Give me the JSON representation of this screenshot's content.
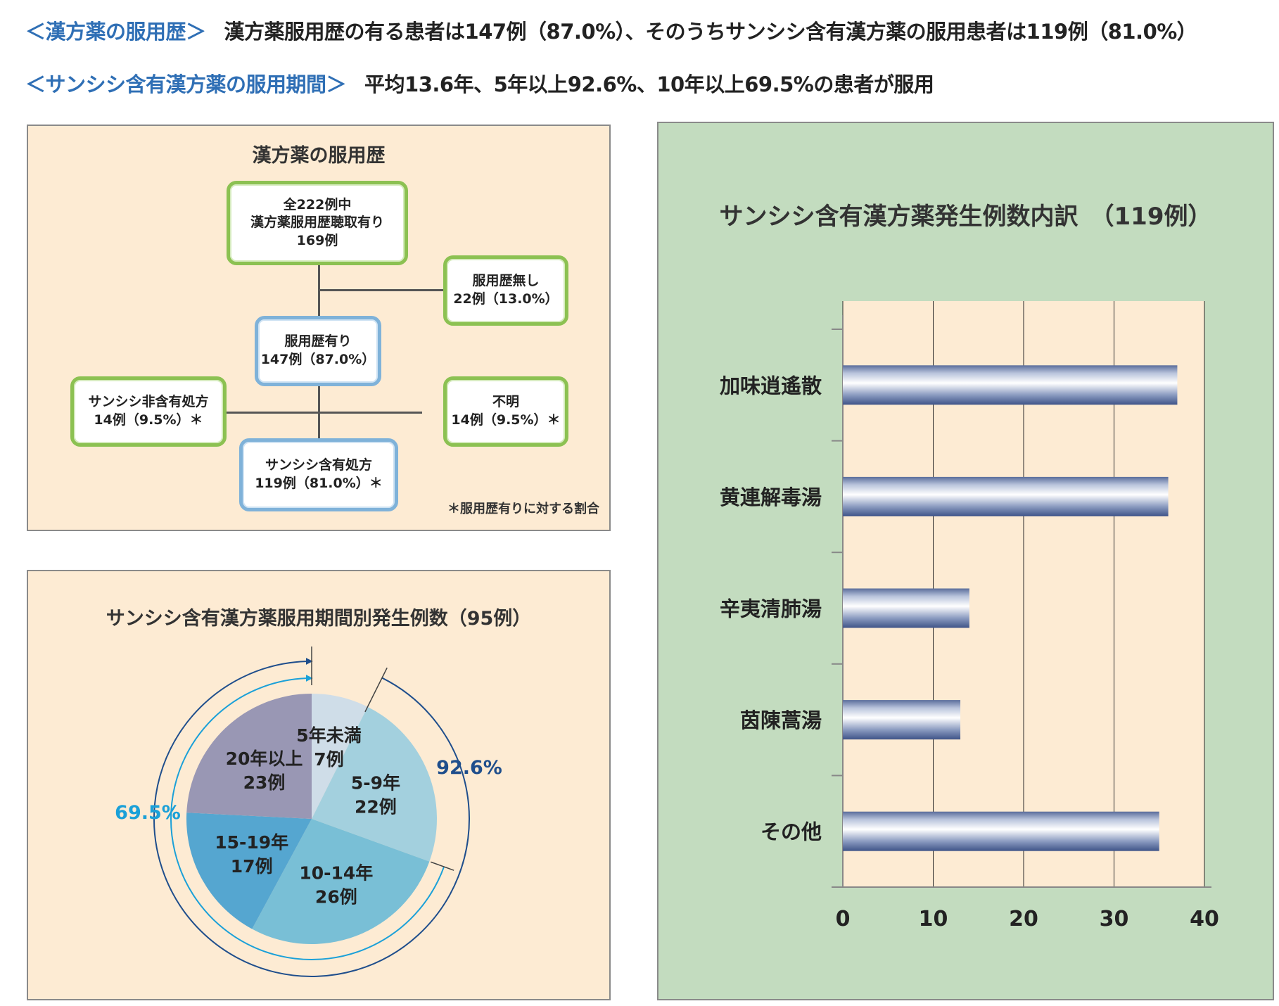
{
  "header": {
    "line1_label": "＜漢方薬の服用歴＞",
    "line1_text": "漢方薬服用歴の有る患者は147例（87.0%）、そのうちサンシシ含有漢方薬の服用患者は119例（81.0%）",
    "line2_label": "＜サンシシ含有漢方薬の服用期間＞",
    "line2_text": "平均13.6年、5年以上92.6%、10年以上69.5%の患者が服用"
  },
  "flow": {
    "title": "漢方薬の服用歴",
    "total": {
      "line1": "全222例中",
      "line2": "漢方薬服用歴聴取有り",
      "line3": "169例"
    },
    "none": {
      "line1": "服用歴無し",
      "line2": "22例（13.0%）"
    },
    "yes": {
      "line1": "服用歴有り",
      "line2": "147例（87.0%）"
    },
    "non_sanshishi": {
      "line1": "サンシシ非含有処方",
      "line2": "14例（9.5%）＊"
    },
    "unknown": {
      "line1": "不明",
      "line2": "14例（9.5%）＊"
    },
    "sanshishi": {
      "line1": "サンシシ含有処方",
      "line2": "119例（81.0%）＊"
    },
    "footnote": "＊服用歴有りに対する割合"
  },
  "colors": {
    "peach_panel": "#fdebd3",
    "green_panel": "#c3dcbf",
    "box_green_border": "#8cc152",
    "box_blue_border": "#7fb2d9",
    "header_blue": "#2f6fb5",
    "pct_dark_blue": "#1f4e8c",
    "pct_light_blue": "#1aa0d8",
    "bar_dark": "#4a5f91"
  },
  "chart_data": [
    {
      "type": "pie",
      "title": "サンシシ含有漢方薬服用期間別発生例数（95例）",
      "slices": [
        {
          "name": "5年未満",
          "count_label": "7例",
          "value": 7,
          "color": "#cfdde8"
        },
        {
          "name": "5-9年",
          "count_label": "22例",
          "value": 22,
          "color": "#a3d0de"
        },
        {
          "name": "10-14年",
          "count_label": "26例",
          "value": 26,
          "color": "#79bfd6"
        },
        {
          "name": "15-19年",
          "count_label": "17例",
          "value": 17,
          "color": "#55a6d0"
        },
        {
          "name": "20年以上",
          "count_label": "23例",
          "value": 23,
          "color": "#9997b4"
        }
      ],
      "annotations": [
        {
          "text": "92.6%",
          "meaning": "5年以上",
          "color": "#1f4e8c"
        },
        {
          "text": "69.5%",
          "meaning": "10年以上",
          "color": "#1aa0d8"
        }
      ]
    },
    {
      "type": "bar",
      "orientation": "horizontal",
      "title": "サンシシ含有漢方薬発生例数内訳　（119例）",
      "categories": [
        "加味逍遙散",
        "黄連解毒湯",
        "辛夷清肺湯",
        "茵陳蒿湯",
        "その他"
      ],
      "values": [
        37,
        36,
        14,
        13,
        35
      ],
      "xlim": [
        0,
        40
      ],
      "xticks": [
        "0",
        "10",
        "20",
        "30",
        "40"
      ],
      "grid": true,
      "xlabel": "",
      "ylabel": ""
    }
  ]
}
